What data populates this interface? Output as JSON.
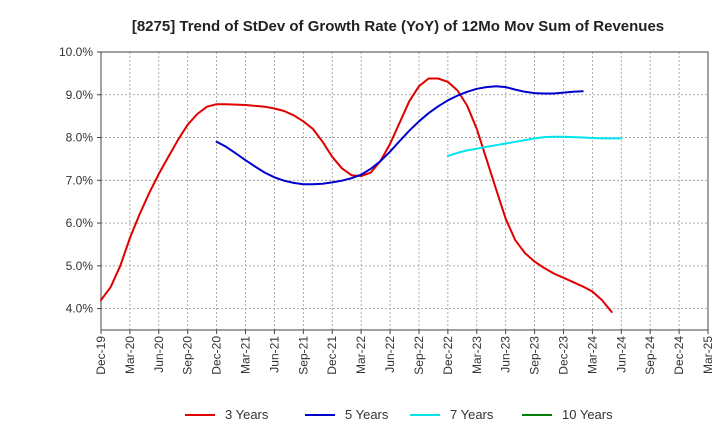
{
  "chart_data": {
    "type": "line",
    "title": "[8275]  Trend of StDev of Growth Rate (YoY) of 12Mo Mov Sum of Revenues",
    "xlabel": "",
    "ylabel": "",
    "x_ticks": [
      "Dec-19",
      "Mar-20",
      "Jun-20",
      "Sep-20",
      "Dec-20",
      "Mar-21",
      "Jun-21",
      "Sep-21",
      "Dec-21",
      "Mar-22",
      "Jun-22",
      "Sep-22",
      "Dec-22",
      "Mar-23",
      "Jun-23",
      "Sep-23",
      "Dec-23",
      "Mar-24",
      "Jun-24",
      "Sep-24",
      "Dec-24",
      "Mar-25"
    ],
    "y_ticks": [
      "4.0%",
      "5.0%",
      "6.0%",
      "7.0%",
      "8.0%",
      "9.0%",
      "10.0%"
    ],
    "ylim": [
      3.5,
      10.0
    ],
    "y_tick_values": [
      4.0,
      5.0,
      6.0,
      7.0,
      8.0,
      9.0,
      10.0
    ],
    "grid": true,
    "legend_position": "bottom",
    "series": [
      {
        "name": "3 Years",
        "color": "#e00000",
        "points": [
          [
            0,
            4.2
          ],
          [
            1,
            4.5
          ],
          [
            2,
            5.0
          ],
          [
            3,
            5.65
          ],
          [
            4,
            6.2
          ],
          [
            5,
            6.7
          ],
          [
            6,
            7.15
          ],
          [
            7,
            7.55
          ],
          [
            8,
            7.95
          ],
          [
            9,
            8.3
          ],
          [
            10,
            8.55
          ],
          [
            11,
            8.72
          ],
          [
            12,
            8.78
          ],
          [
            13,
            8.78
          ],
          [
            14,
            8.77
          ],
          [
            15,
            8.76
          ],
          [
            16,
            8.74
          ],
          [
            17,
            8.72
          ],
          [
            18,
            8.68
          ],
          [
            19,
            8.62
          ],
          [
            20,
            8.52
          ],
          [
            21,
            8.38
          ],
          [
            22,
            8.2
          ],
          [
            23,
            7.9
          ],
          [
            24,
            7.55
          ],
          [
            25,
            7.28
          ],
          [
            26,
            7.12
          ],
          [
            27,
            7.1
          ],
          [
            28,
            7.18
          ],
          [
            29,
            7.45
          ],
          [
            30,
            7.85
          ],
          [
            31,
            8.35
          ],
          [
            32,
            8.85
          ],
          [
            33,
            9.2
          ],
          [
            34,
            9.38
          ],
          [
            35,
            9.38
          ],
          [
            36,
            9.3
          ],
          [
            37,
            9.1
          ],
          [
            38,
            8.75
          ],
          [
            39,
            8.2
          ],
          [
            40,
            7.5
          ],
          [
            41,
            6.8
          ],
          [
            42,
            6.1
          ],
          [
            43,
            5.6
          ],
          [
            44,
            5.3
          ],
          [
            45,
            5.1
          ],
          [
            46,
            4.95
          ],
          [
            47,
            4.82
          ],
          [
            48,
            4.72
          ],
          [
            49,
            4.62
          ],
          [
            50,
            4.52
          ],
          [
            51,
            4.4
          ],
          [
            52,
            4.2
          ],
          [
            53,
            3.92
          ]
        ]
      },
      {
        "name": "5 Years",
        "color": "#0000cc",
        "points": [
          [
            12,
            7.9
          ],
          [
            13,
            7.78
          ],
          [
            14,
            7.63
          ],
          [
            15,
            7.47
          ],
          [
            16,
            7.32
          ],
          [
            17,
            7.18
          ],
          [
            18,
            7.07
          ],
          [
            19,
            6.99
          ],
          [
            20,
            6.94
          ],
          [
            21,
            6.91
          ],
          [
            22,
            6.91
          ],
          [
            23,
            6.92
          ],
          [
            24,
            6.95
          ],
          [
            25,
            6.99
          ],
          [
            26,
            7.05
          ],
          [
            27,
            7.13
          ],
          [
            28,
            7.27
          ],
          [
            29,
            7.45
          ],
          [
            30,
            7.67
          ],
          [
            31,
            7.92
          ],
          [
            32,
            8.16
          ],
          [
            33,
            8.38
          ],
          [
            34,
            8.57
          ],
          [
            35,
            8.73
          ],
          [
            36,
            8.87
          ],
          [
            37,
            8.98
          ],
          [
            38,
            9.07
          ],
          [
            39,
            9.14
          ],
          [
            40,
            9.18
          ],
          [
            41,
            9.2
          ],
          [
            42,
            9.18
          ],
          [
            43,
            9.12
          ],
          [
            44,
            9.07
          ],
          [
            45,
            9.04
          ],
          [
            46,
            9.03
          ],
          [
            47,
            9.03
          ],
          [
            48,
            9.05
          ],
          [
            49,
            9.07
          ],
          [
            50,
            9.08
          ]
        ]
      },
      {
        "name": "7 Years",
        "color": "#00e5ee",
        "points": [
          [
            36,
            7.57
          ],
          [
            37,
            7.64
          ],
          [
            38,
            7.7
          ],
          [
            39,
            7.74
          ],
          [
            40,
            7.78
          ],
          [
            41,
            7.82
          ],
          [
            42,
            7.86
          ],
          [
            43,
            7.9
          ],
          [
            44,
            7.94
          ],
          [
            45,
            7.98
          ],
          [
            46,
            8.01
          ],
          [
            47,
            8.02
          ],
          [
            48,
            8.02
          ],
          [
            49,
            8.01
          ],
          [
            50,
            8.0
          ],
          [
            51,
            7.99
          ],
          [
            52,
            7.98
          ],
          [
            53,
            7.98
          ],
          [
            54,
            7.98
          ]
        ]
      },
      {
        "name": "10 Years",
        "color": "#008000",
        "points": []
      }
    ]
  }
}
